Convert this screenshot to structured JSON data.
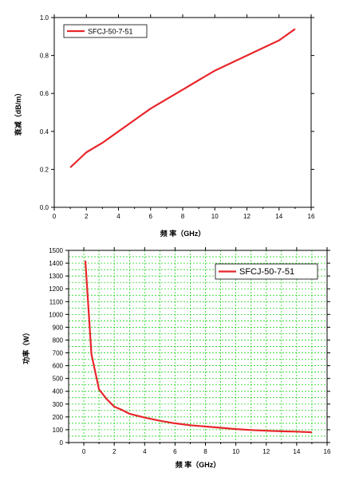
{
  "chart_data": [
    {
      "type": "line",
      "xlabel": "频 率（GHz）",
      "ylabel": "衰减（dB/m）",
      "xlim": [
        0,
        16
      ],
      "ylim": [
        0,
        1.0
      ],
      "x_ticks": [
        "0",
        "2",
        "4",
        "6",
        "8",
        "10",
        "12",
        "14",
        "16"
      ],
      "y_ticks": [
        "0.0",
        "0.2",
        "0.4",
        "0.6",
        "0.8",
        "1.0"
      ],
      "grid": false,
      "legend_position": "top-left",
      "series": [
        {
          "name": "SFCJ-50-7-51",
          "color": "#e8262b",
          "x": [
            1,
            2,
            3,
            4,
            5,
            6,
            7,
            8,
            9,
            10,
            11,
            12,
            13,
            14,
            15
          ],
          "y": [
            0.21,
            0.29,
            0.34,
            0.4,
            0.46,
            0.52,
            0.57,
            0.62,
            0.67,
            0.72,
            0.76,
            0.8,
            0.84,
            0.88,
            0.94
          ]
        }
      ]
    },
    {
      "type": "line",
      "xlabel": "频 率（GHz）",
      "ylabel": "功率（W）",
      "xlim": [
        -1,
        16
      ],
      "ylim": [
        0,
        1500
      ],
      "x_ticks": [
        "0",
        "2",
        "4",
        "6",
        "8",
        "10",
        "12",
        "14",
        "16"
      ],
      "y_ticks": [
        "0",
        "100",
        "200",
        "300",
        "400",
        "500",
        "600",
        "700",
        "800",
        "900",
        "1000",
        "1100",
        "1200",
        "1300",
        "1400",
        "1500"
      ],
      "grid": true,
      "grid_color": "#00cc00",
      "legend_position": "top-right",
      "series": [
        {
          "name": "SFCJ-50-7-51",
          "color": "#e8262b",
          "x": [
            0.1,
            0.5,
            1,
            1.5,
            2,
            2.5,
            3,
            4,
            5,
            6,
            7,
            8,
            9,
            10,
            11,
            12,
            13,
            14,
            15
          ],
          "y": [
            1420,
            690,
            415,
            340,
            280,
            255,
            225,
            195,
            170,
            150,
            135,
            125,
            115,
            105,
            98,
            92,
            88,
            85,
            80
          ]
        }
      ]
    }
  ]
}
